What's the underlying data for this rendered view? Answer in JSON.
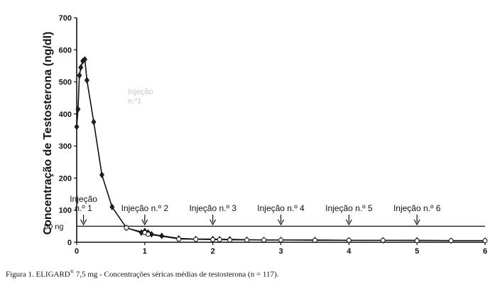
{
  "chart_data": {
    "type": "line",
    "title": "",
    "xlabel": "",
    "ylabel": "Concentração de Testosterona (ng/dl)",
    "xlim": [
      0,
      6
    ],
    "ylim": [
      0,
      700
    ],
    "x_ticks": [
      "0",
      "1",
      "2",
      "3",
      "4",
      "5",
      "6"
    ],
    "y_ticks": [
      "0",
      "100",
      "200",
      "300",
      "400",
      "500",
      "600",
      "700"
    ],
    "reference_line": {
      "value": 50,
      "label": "50 ng"
    },
    "faint_label": [
      "Injeção",
      "n.º1"
    ],
    "series": [
      {
        "marker": "diamond",
        "x": [
          0,
          0.02,
          0.04,
          0.06,
          0.09,
          0.12,
          0.15,
          0.25,
          0.37,
          0.52,
          0.73,
          0.95,
          1.0,
          1.05,
          1.1,
          1.25,
          1.5,
          1.75,
          2.0,
          2.1,
          2.25,
          2.5,
          2.75,
          3.0,
          3.5,
          4.0,
          4.5,
          5.0,
          5.5,
          6.0
        ],
        "values": [
          360,
          415,
          520,
          545,
          565,
          570,
          505,
          375,
          210,
          110,
          45,
          30,
          35,
          30,
          25,
          20,
          12,
          10,
          10,
          9,
          9,
          8,
          7,
          7,
          7,
          6,
          6,
          6,
          5,
          5
        ]
      },
      {
        "marker": "circle",
        "x": [
          0.73,
          1.0,
          1.05,
          1.5,
          1.75,
          2.0,
          2.1,
          2.25,
          2.5,
          2.75,
          3.0,
          3.5,
          4.0,
          4.5,
          5.0,
          5.5,
          6.0
        ],
        "values": [
          45,
          30,
          25,
          10,
          9,
          8,
          8,
          7,
          7,
          7,
          7,
          6,
          6,
          6,
          5,
          5,
          5
        ]
      }
    ],
    "annotations": [
      {
        "x": 0.1,
        "lines": [
          "Injeção",
          "n.º 1"
        ]
      },
      {
        "x": 1.0,
        "lines": [
          "Injeção n.º 2"
        ]
      },
      {
        "x": 2.0,
        "lines": [
          "Injeção n.º 3"
        ]
      },
      {
        "x": 3.0,
        "lines": [
          "Injeção n.º 4"
        ]
      },
      {
        "x": 4.0,
        "lines": [
          "Injeção n.º 5"
        ]
      },
      {
        "x": 5.0,
        "lines": [
          "Injeção n.º 6"
        ]
      }
    ]
  },
  "caption": {
    "prefix": "Figura 1. ELIGARD",
    "sup": "®",
    "rest": " 7,5 mg - Concentrações séricas médias de testosterona (n = 117)."
  }
}
